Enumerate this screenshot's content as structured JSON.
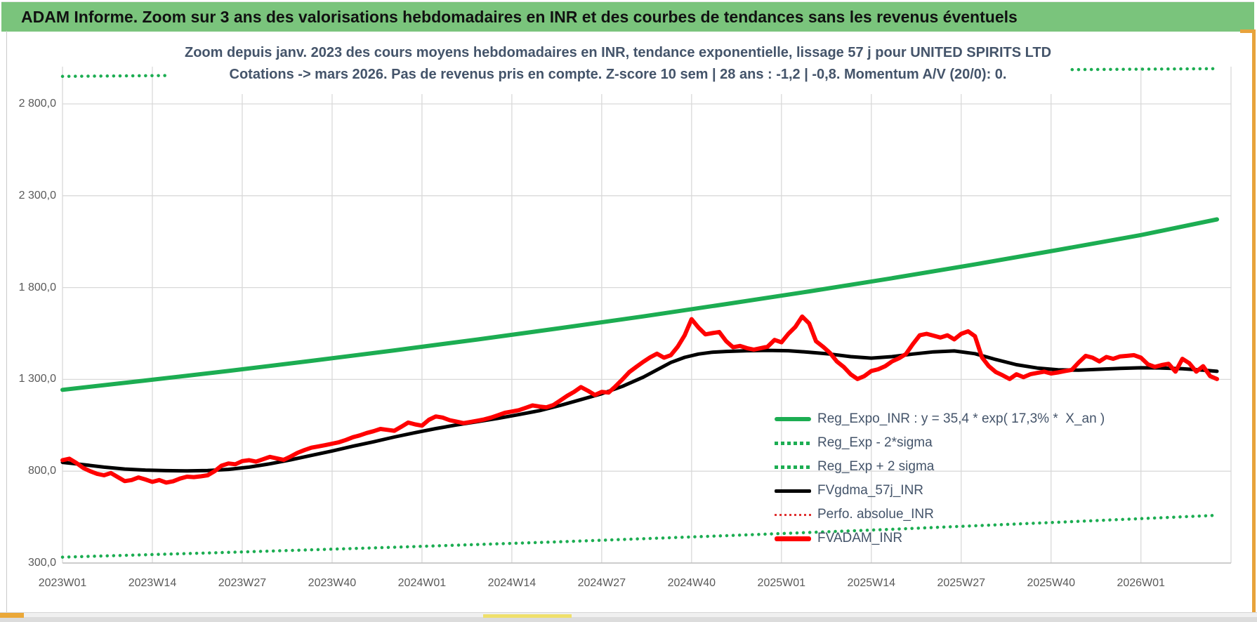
{
  "header": {
    "title": "ADAM Informe. Zoom sur 3 ans des valorisations hebdomadaires en INR et des courbes de tendances sans les revenus éventuels",
    "bg_color": "#7AC47C"
  },
  "window_accents": {
    "right_border_color": "#E8A33B",
    "bottom_left_marker_color": "#EBA838",
    "bottom_strip_color": "#EFE06B"
  },
  "chart_data": {
    "type": "line",
    "title_line1": "Zoom depuis janv. 2023 des cours moyens hebdomadaires en INR, tendance exponentielle, lissage 57 j pour UNITED SPIRITS LTD",
    "title_line2": "Cotations -> mars 2026. Pas de revenus pris en compte. Z-score 10 sem | 28 ans : -1,2 | -0,8. Momentum A/V (20/0): 0.",
    "title_color": "#44546A",
    "x_tick_labels": [
      "2023W01",
      "2023W14",
      "2023W27",
      "2023W40",
      "2024W01",
      "2024W14",
      "2024W27",
      "2024W40",
      "2025W01",
      "2025W14",
      "2025W27",
      "2025W40",
      "2026W01"
    ],
    "x_tick_week_index": [
      0,
      13,
      26,
      39,
      52,
      65,
      78,
      91,
      104,
      117,
      130,
      143,
      156
    ],
    "y_tick_labels": [
      "2 800,0",
      "2 300,0",
      "1 800,0",
      "1 300,0",
      "800,0",
      "300,0"
    ],
    "y_tick_values": [
      2800,
      2300,
      1800,
      1300,
      800,
      300
    ],
    "ylim": [
      300,
      3000
    ],
    "x_total_weeks": 167,
    "grid": true,
    "gridline_color": "#D9D9D9",
    "axis_line_color": "#BFBFBF",
    "legend_position": "inside-right-bottom",
    "series": [
      {
        "name": "Reg_Expo_INR",
        "legend_label": "Reg_Expo_INR : y = 35,4 * exp( 17,3% *  X_an )",
        "color": "#1CAD52",
        "style": "solid",
        "width": 6,
        "points": [
          [
            0,
            1243
          ],
          [
            12,
            1294
          ],
          [
            24,
            1346
          ],
          [
            36,
            1401
          ],
          [
            48,
            1458
          ],
          [
            60,
            1517
          ],
          [
            72,
            1579
          ],
          [
            84,
            1643
          ],
          [
            96,
            1710
          ],
          [
            108,
            1779
          ],
          [
            120,
            1851
          ],
          [
            132,
            1926
          ],
          [
            144,
            2005
          ],
          [
            156,
            2086
          ],
          [
            167,
            2171
          ]
        ]
      },
      {
        "name": "Reg_Exp - 2*sigma",
        "legend_label": "Reg_Exp - 2*sigma",
        "color": "#1CAD52",
        "style": "dotted",
        "width": 4.5,
        "points": [
          [
            0,
            332
          ],
          [
            24,
            358
          ],
          [
            48,
            386
          ],
          [
            72,
            416
          ],
          [
            96,
            449
          ],
          [
            120,
            484
          ],
          [
            144,
            522
          ],
          [
            167,
            560
          ]
        ]
      },
      {
        "name": "Reg_Exp + 2 sigma",
        "legend_label": "Reg_Exp + 2 sigma",
        "color": "#1CAD52",
        "style": "dotted",
        "width": 4.5,
        "points": [
          [
            0,
            2950
          ],
          [
            40,
            2962
          ],
          [
            80,
            2972
          ],
          [
            120,
            2980
          ],
          [
            167,
            2992
          ]
        ]
      },
      {
        "name": "FVgdma_57j_INR",
        "legend_label": "FVgdma_57j_INR",
        "color": "#000000",
        "style": "solid",
        "width": 5,
        "points": [
          [
            0,
            848
          ],
          [
            3,
            836
          ],
          [
            6,
            822
          ],
          [
            9,
            812
          ],
          [
            12,
            806
          ],
          [
            15,
            803
          ],
          [
            18,
            802
          ],
          [
            21,
            804
          ],
          [
            24,
            810
          ],
          [
            27,
            822
          ],
          [
            30,
            840
          ],
          [
            33,
            862
          ],
          [
            36,
            886
          ],
          [
            39,
            910
          ],
          [
            42,
            936
          ],
          [
            45,
            960
          ],
          [
            48,
            986
          ],
          [
            51,
            1010
          ],
          [
            54,
            1032
          ],
          [
            57,
            1052
          ],
          [
            60,
            1070
          ],
          [
            63,
            1088
          ],
          [
            66,
            1108
          ],
          [
            69,
            1130
          ],
          [
            72,
            1158
          ],
          [
            75,
            1190
          ],
          [
            78,
            1222
          ],
          [
            81,
            1262
          ],
          [
            84,
            1312
          ],
          [
            86,
            1352
          ],
          [
            88,
            1392
          ],
          [
            90,
            1420
          ],
          [
            92,
            1438
          ],
          [
            94,
            1448
          ],
          [
            96,
            1452
          ],
          [
            99,
            1456
          ],
          [
            102,
            1458
          ],
          [
            105,
            1456
          ],
          [
            108,
            1448
          ],
          [
            111,
            1438
          ],
          [
            114,
            1424
          ],
          [
            117,
            1416
          ],
          [
            120,
            1424
          ],
          [
            123,
            1438
          ],
          [
            126,
            1450
          ],
          [
            129,
            1455
          ],
          [
            132,
            1440
          ],
          [
            135,
            1408
          ],
          [
            138,
            1380
          ],
          [
            141,
            1362
          ],
          [
            144,
            1352
          ],
          [
            147,
            1350
          ],
          [
            150,
            1355
          ],
          [
            153,
            1360
          ],
          [
            156,
            1363
          ],
          [
            159,
            1362
          ],
          [
            162,
            1358
          ],
          [
            165,
            1350
          ],
          [
            167,
            1344
          ]
        ]
      },
      {
        "name": "Perfo. absolue_INR",
        "legend_label": "Perfo. absolue_INR",
        "color": "#E03030",
        "style": "dotted",
        "width": 2.5,
        "points": []
      },
      {
        "name": "FVADAM_INR",
        "legend_label": "FVADAM_INR",
        "color": "#FF0000",
        "style": "solid",
        "width": 6,
        "weekly_values": [
          860,
          868,
          845,
          818,
          800,
          786,
          778,
          790,
          768,
          746,
          752,
          766,
          755,
          742,
          752,
          738,
          745,
          760,
          770,
          768,
          772,
          778,
          800,
          830,
          842,
          838,
          855,
          860,
          852,
          865,
          878,
          870,
          862,
          880,
          900,
          915,
          928,
          935,
          942,
          950,
          958,
          970,
          985,
          995,
          1008,
          1018,
          1030,
          1025,
          1020,
          1042,
          1065,
          1055,
          1048,
          1080,
          1098,
          1092,
          1078,
          1070,
          1062,
          1068,
          1075,
          1082,
          1092,
          1105,
          1118,
          1125,
          1132,
          1145,
          1158,
          1152,
          1148,
          1160,
          1185,
          1210,
          1232,
          1258,
          1238,
          1215,
          1232,
          1228,
          1262,
          1300,
          1340,
          1368,
          1395,
          1420,
          1440,
          1418,
          1432,
          1478,
          1540,
          1628,
          1582,
          1545,
          1552,
          1558,
          1508,
          1475,
          1482,
          1470,
          1462,
          1470,
          1478,
          1515,
          1502,
          1548,
          1585,
          1642,
          1605,
          1508,
          1478,
          1445,
          1398,
          1368,
          1328,
          1302,
          1318,
          1346,
          1355,
          1372,
          1398,
          1415,
          1438,
          1492,
          1540,
          1548,
          1538,
          1528,
          1540,
          1518,
          1548,
          1562,
          1535,
          1420,
          1372,
          1340,
          1322,
          1302,
          1328,
          1312,
          1328,
          1335,
          1342,
          1332,
          1338,
          1345,
          1352,
          1392,
          1428,
          1418,
          1398,
          1422,
          1412,
          1425,
          1428,
          1432,
          1418,
          1382,
          1368,
          1378,
          1385,
          1342,
          1412,
          1388,
          1342,
          1372,
          1318,
          1302
        ]
      }
    ]
  }
}
